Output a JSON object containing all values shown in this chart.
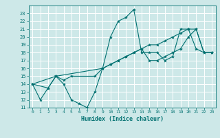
{
  "title": "",
  "xlabel": "Humidex (Indice chaleur)",
  "ylabel": "",
  "xlim": [
    -0.5,
    23.5
  ],
  "ylim": [
    11,
    24
  ],
  "yticks": [
    11,
    12,
    13,
    14,
    15,
    16,
    17,
    18,
    19,
    20,
    21,
    22,
    23
  ],
  "xticks": [
    0,
    1,
    2,
    3,
    4,
    5,
    6,
    7,
    8,
    9,
    10,
    11,
    12,
    13,
    14,
    15,
    16,
    17,
    18,
    19,
    20,
    21,
    22,
    23
  ],
  "bg_color": "#cde8e8",
  "grid_color": "#ffffff",
  "line_color": "#007070",
  "lines": [
    {
      "x": [
        0,
        1,
        2,
        3,
        4,
        5,
        6,
        7,
        8,
        9,
        10,
        11,
        12,
        13,
        14,
        15,
        16,
        17,
        18,
        19,
        20,
        21,
        22,
        23
      ],
      "y": [
        14,
        12,
        13.5,
        15,
        14,
        12,
        11.5,
        11,
        13,
        16,
        20,
        22,
        22.5,
        23.5,
        18,
        18,
        18,
        17,
        17.5,
        21,
        21,
        18.5,
        18,
        18
      ]
    },
    {
      "x": [
        0,
        2,
        3,
        4,
        5,
        8,
        9,
        10,
        11,
        12,
        13,
        14,
        15,
        16,
        17,
        18,
        19,
        20,
        21,
        22,
        23
      ],
      "y": [
        14,
        13.5,
        15,
        14.5,
        15,
        15,
        16,
        16.5,
        17,
        17.5,
        18,
        18.5,
        19,
        19,
        19.5,
        20,
        20.5,
        21,
        21,
        18,
        18
      ]
    },
    {
      "x": [
        0,
        3,
        9,
        10,
        11,
        12,
        13,
        14,
        15,
        16,
        17,
        18,
        19,
        20,
        21,
        22,
        23
      ],
      "y": [
        14,
        15,
        16,
        16.5,
        17,
        17.5,
        18,
        18.5,
        17,
        17,
        17.5,
        18,
        18.5,
        20,
        21,
        18,
        18
      ]
    }
  ]
}
